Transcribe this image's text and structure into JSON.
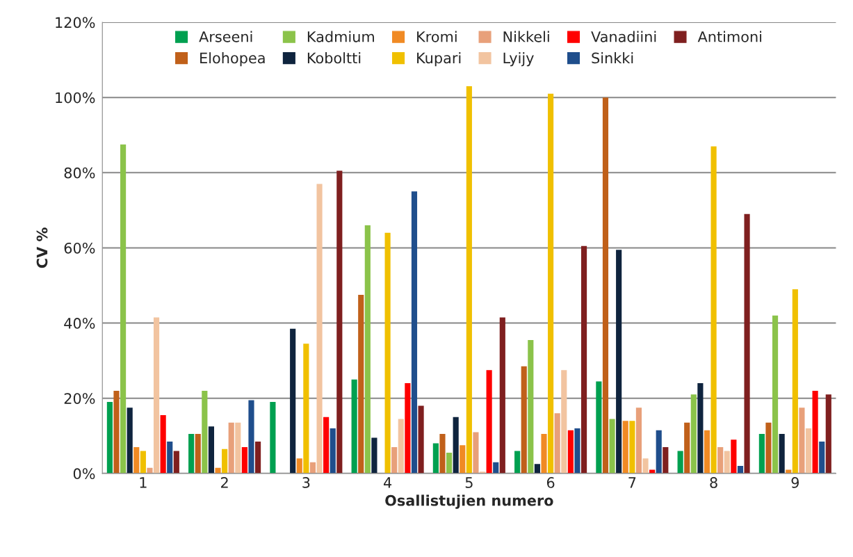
{
  "chart_data": {
    "type": "bar",
    "xlabel": "Osallistujien numero",
    "ylabel": "CV %",
    "categories": [
      "1",
      "2",
      "3",
      "4",
      "5",
      "6",
      "7",
      "8",
      "9"
    ],
    "ylim": [
      0,
      120
    ],
    "yticks": [
      {
        "value": 0,
        "label": "0%"
      },
      {
        "value": 20,
        "label": "20%"
      },
      {
        "value": 40,
        "label": "40%"
      },
      {
        "value": 60,
        "label": "60%"
      },
      {
        "value": 80,
        "label": "80%"
      },
      {
        "value": 100,
        "label": "100%"
      },
      {
        "value": 120,
        "label": "120%"
      }
    ],
    "grid": "y",
    "legend": "top",
    "series": [
      {
        "name": "Arseeni",
        "color": "#00a050",
        "values": [
          19,
          10.5,
          19,
          25,
          8,
          6,
          24.5,
          6,
          10.5
        ]
      },
      {
        "name": "Elohopea",
        "color": "#c0601a",
        "values": [
          22,
          10.5,
          0,
          47.5,
          10.5,
          28.5,
          100,
          13.5,
          13.5
        ]
      },
      {
        "name": "Kadmium",
        "color": "#8bc34a",
        "values": [
          87.5,
          22,
          0,
          66,
          5.5,
          35.5,
          14.5,
          21,
          42
        ]
      },
      {
        "name": "Koboltti",
        "color": "#0f243e",
        "values": [
          17.5,
          12.5,
          38.5,
          9.5,
          15,
          2.5,
          59.5,
          24,
          10.5
        ]
      },
      {
        "name": "Kromi",
        "color": "#f08a24",
        "values": [
          7,
          1.5,
          4,
          0,
          7.5,
          10.5,
          14,
          11.5,
          1
        ]
      },
      {
        "name": "Kupari",
        "color": "#f0c000",
        "values": [
          6,
          6.5,
          34.5,
          64,
          103,
          101,
          14,
          87,
          49
        ]
      },
      {
        "name": "Nikkeli",
        "color": "#e8a07a",
        "values": [
          1.5,
          13.5,
          3,
          7,
          11,
          16,
          17.5,
          7,
          17.5
        ]
      },
      {
        "name": "Lyijy",
        "color": "#f2c4a0",
        "values": [
          41.5,
          13.5,
          77,
          14.5,
          0.5,
          27.5,
          4,
          6,
          12
        ]
      },
      {
        "name": "Vanadiini",
        "color": "#ff0000",
        "values": [
          15.5,
          7,
          15,
          24,
          27.5,
          11.5,
          1,
          9,
          22
        ]
      },
      {
        "name": "Sinkki",
        "color": "#1f4e8c",
        "values": [
          8.5,
          19.5,
          12,
          75,
          3,
          12,
          11.5,
          2,
          8.5
        ]
      },
      {
        "name": "Antimoni",
        "color": "#7f1f1f",
        "values": [
          6,
          8.5,
          80.5,
          18,
          41.5,
          60.5,
          7,
          69,
          21
        ]
      }
    ]
  }
}
